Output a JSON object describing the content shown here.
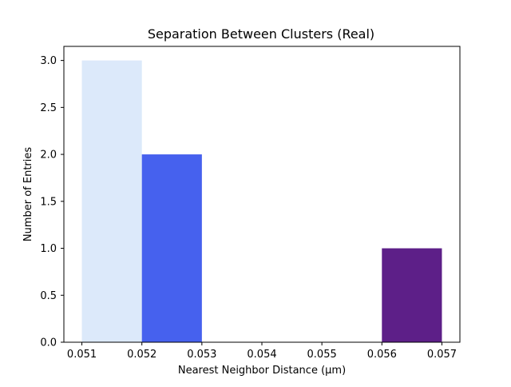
{
  "chart_data": {
    "type": "bar",
    "title": "Separation Between Clusters (Real)",
    "xlabel": "Nearest Neighbor Distance (µm)",
    "ylabel": "Number of Entries",
    "xlim": [
      0.0507,
      0.0573
    ],
    "ylim": [
      0,
      3.15
    ],
    "x_ticks": [
      0.051,
      0.052,
      0.053,
      0.054,
      0.055,
      0.056,
      0.057
    ],
    "x_tick_labels": [
      "0.051",
      "0.052",
      "0.053",
      "0.054",
      "0.055",
      "0.056",
      "0.057"
    ],
    "y_ticks": [
      0,
      0.5,
      1,
      1.5,
      2,
      2.5,
      3
    ],
    "y_tick_labels": [
      "0.0",
      "0.5",
      "1.0",
      "1.5",
      "2.0",
      "2.5",
      "3.0"
    ],
    "grid": false,
    "bins": [
      {
        "x_start": 0.051,
        "x_end": 0.052,
        "value": 3,
        "color": "#dce9fa"
      },
      {
        "x_start": 0.052,
        "x_end": 0.053,
        "value": 2,
        "color": "#4661ee"
      },
      {
        "x_start": 0.053,
        "x_end": 0.054,
        "value": 0,
        "color": "#4661ee"
      },
      {
        "x_start": 0.054,
        "x_end": 0.055,
        "value": 0,
        "color": "#4661ee"
      },
      {
        "x_start": 0.055,
        "x_end": 0.056,
        "value": 0,
        "color": "#5d1f88"
      },
      {
        "x_start": 0.056,
        "x_end": 0.057,
        "value": 1,
        "color": "#5d1f88"
      }
    ]
  }
}
